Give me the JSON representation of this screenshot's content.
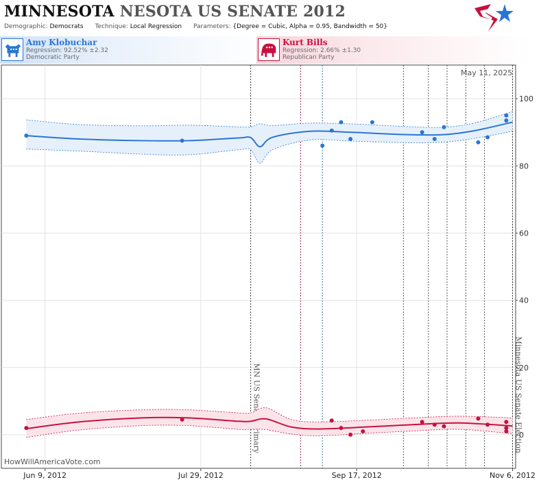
{
  "header": {
    "title_a": "MINNESOTA",
    "title_b": "NESOTA US SENATE 2012",
    "demographic_label": "Demographic:",
    "demographic_value": "Democrats",
    "technique_label": "Technique:",
    "technique_value": "Local Regression",
    "parameters_label": "Parameters:",
    "parameters_value": "{Degree = Cubic, Alpha = 0.95, Bandwidth = 50}"
  },
  "candidates": {
    "dem": {
      "name": "Amy Klobuchar",
      "regression": "Regression: 92.52% ±2.32",
      "party": "Democratic Party",
      "color": "#2a75d3"
    },
    "rep": {
      "name": "Kurt Bills",
      "regression": "Regression: 2.66% ±1.30",
      "party": "Republican Party",
      "color": "#c8103e"
    }
  },
  "footer": {
    "watermark": "HowWillAmericaVote.com",
    "date": "May 11, 2025"
  },
  "chart_data": {
    "type": "line",
    "x_range": [
      "2012-05-26",
      "2012-11-07"
    ],
    "ylim": [
      -10,
      110
    ],
    "yticks": [
      0,
      20,
      40,
      60,
      80,
      100
    ],
    "xticks": [
      {
        "date": "2012-06-09",
        "label": "Jun 9, 2012"
      },
      {
        "date": "2012-07-29",
        "label": "Jul 29, 2012"
      },
      {
        "date": "2012-09-17",
        "label": "Sep 17, 2012"
      },
      {
        "date": "2012-11-06",
        "label": "Nov 6, 2012"
      }
    ],
    "events": [
      {
        "date": "2012-08-14",
        "label": "MN US Senate Primary"
      },
      {
        "date": "2012-11-06",
        "label": "Minnesota US Senate Election"
      }
    ],
    "markers": [
      {
        "date": "2012-08-30",
        "color": "#8b2252"
      },
      {
        "date": "2012-09-06",
        "color": "#2a7a8a"
      },
      {
        "date": "2012-10-02",
        "color": "#555555"
      },
      {
        "date": "2012-10-10",
        "color": "#555555"
      },
      {
        "date": "2012-10-16",
        "color": "#555555"
      },
      {
        "date": "2012-10-22",
        "color": "#555555"
      },
      {
        "date": "2012-10-28",
        "color": "#555555"
      }
    ],
    "series": [
      {
        "name": "Amy Klobuchar",
        "color": "#2a75d3",
        "trend_x": [
          "2012-06-03",
          "2012-06-20",
          "2012-07-10",
          "2012-07-25",
          "2012-08-10",
          "2012-08-14",
          "2012-08-17",
          "2012-08-21",
          "2012-09-02",
          "2012-09-15",
          "2012-10-03",
          "2012-10-15",
          "2012-10-25",
          "2012-11-06"
        ],
        "trend_y": [
          89.0,
          88.0,
          87.5,
          87.5,
          88.3,
          88.4,
          85.7,
          88.5,
          90.3,
          90.0,
          89.3,
          89.3,
          90.5,
          93.0
        ],
        "band_upper": [
          93.7,
          92.3,
          91.9,
          92.1,
          91.6,
          91.6,
          92.5,
          92.0,
          92.7,
          92.5,
          91.7,
          91.5,
          92.8,
          96.2
        ],
        "band_lower": [
          85.0,
          84.4,
          83.5,
          83.3,
          84.8,
          84.8,
          80.8,
          84.8,
          87.7,
          87.4,
          86.9,
          87.1,
          88.2,
          90.3
        ],
        "points": [
          {
            "x": "2012-06-03",
            "y": 89
          },
          {
            "x": "2012-07-23",
            "y": 87.5
          },
          {
            "x": "2012-09-06",
            "y": 86
          },
          {
            "x": "2012-09-09",
            "y": 90.5
          },
          {
            "x": "2012-09-12",
            "y": 93
          },
          {
            "x": "2012-09-15",
            "y": 88
          },
          {
            "x": "2012-09-22",
            "y": 93
          },
          {
            "x": "2012-10-08",
            "y": 90
          },
          {
            "x": "2012-10-12",
            "y": 88
          },
          {
            "x": "2012-10-15",
            "y": 91.5
          },
          {
            "x": "2012-10-26",
            "y": 87
          },
          {
            "x": "2012-10-29",
            "y": 88.5
          },
          {
            "x": "2012-11-04",
            "y": 95
          },
          {
            "x": "2012-11-04",
            "y": 93.5
          }
        ]
      },
      {
        "name": "Kurt Bills",
        "color": "#c8103e",
        "trend_x": [
          "2012-06-03",
          "2012-06-20",
          "2012-07-10",
          "2012-07-25",
          "2012-08-10",
          "2012-08-14",
          "2012-08-19",
          "2012-08-27",
          "2012-09-05",
          "2012-09-20",
          "2012-10-05",
          "2012-10-20",
          "2012-11-06"
        ],
        "trend_y": [
          1.8,
          3.8,
          5.0,
          5.0,
          4.0,
          4.0,
          4.7,
          2.3,
          1.7,
          2.3,
          3.0,
          3.5,
          2.6
        ],
        "band_upper": [
          4.5,
          6.4,
          7.4,
          7.4,
          6.5,
          6.5,
          8.0,
          4.5,
          3.8,
          4.3,
          5.0,
          5.5,
          5.0
        ],
        "band_lower": [
          -0.8,
          1.4,
          2.7,
          2.7,
          1.6,
          1.6,
          1.5,
          0.2,
          -0.3,
          0.4,
          1.1,
          1.6,
          0.3
        ],
        "points": [
          {
            "x": "2012-06-03",
            "y": 2
          },
          {
            "x": "2012-07-23",
            "y": 4.5
          },
          {
            "x": "2012-09-09",
            "y": 4.2
          },
          {
            "x": "2012-09-12",
            "y": 2
          },
          {
            "x": "2012-09-15",
            "y": 0
          },
          {
            "x": "2012-09-19",
            "y": 1
          },
          {
            "x": "2012-10-08",
            "y": 3.8
          },
          {
            "x": "2012-10-12",
            "y": 3
          },
          {
            "x": "2012-10-15",
            "y": 2.5
          },
          {
            "x": "2012-10-26",
            "y": 4.8
          },
          {
            "x": "2012-10-29",
            "y": 3
          },
          {
            "x": "2012-11-04",
            "y": 3.8
          },
          {
            "x": "2012-11-04",
            "y": 2
          },
          {
            "x": "2012-11-04",
            "y": 1
          }
        ]
      }
    ]
  }
}
